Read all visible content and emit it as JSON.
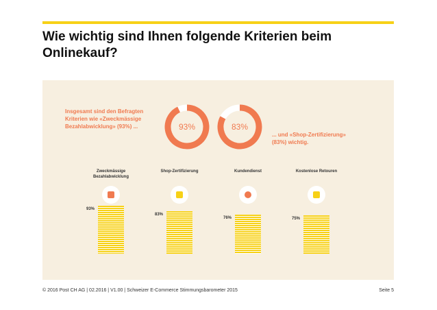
{
  "header": {
    "title": "Wie wichtig sind Ihnen folgende Kriterien beim Onlinekauf?"
  },
  "chart_data": [
    {
      "type": "donut",
      "values": [
        93
      ],
      "value_labels": [
        "93%"
      ],
      "color": "#f07a50",
      "annotation": "Insgesamt sind den Befragten Kriterien wie «Zweckmässige Bezahlabwicklung» (93%) ..."
    },
    {
      "type": "donut",
      "values": [
        83
      ],
      "value_labels": [
        "83%"
      ],
      "color": "#f07a50",
      "annotation": "... und «Shop-Zertifizierung» (83%) wichtig."
    },
    {
      "type": "bar",
      "categories": [
        "Zweckmässige Bezahlabwicklung",
        "Shop-Zertifizierung",
        "Kundendienst",
        "Kostenlose Retouren"
      ],
      "values": [
        93,
        83,
        76,
        75
      ],
      "value_labels": [
        "93%",
        "83%",
        "76%",
        "75%"
      ],
      "color": "#f7d117"
    }
  ],
  "footer": {
    "left": "© 2016 Post CH AG | 02.2016 | V1.00 | Schweizer E-Commerce Stimmungsbarometer 2015",
    "right": "Seite 5"
  }
}
